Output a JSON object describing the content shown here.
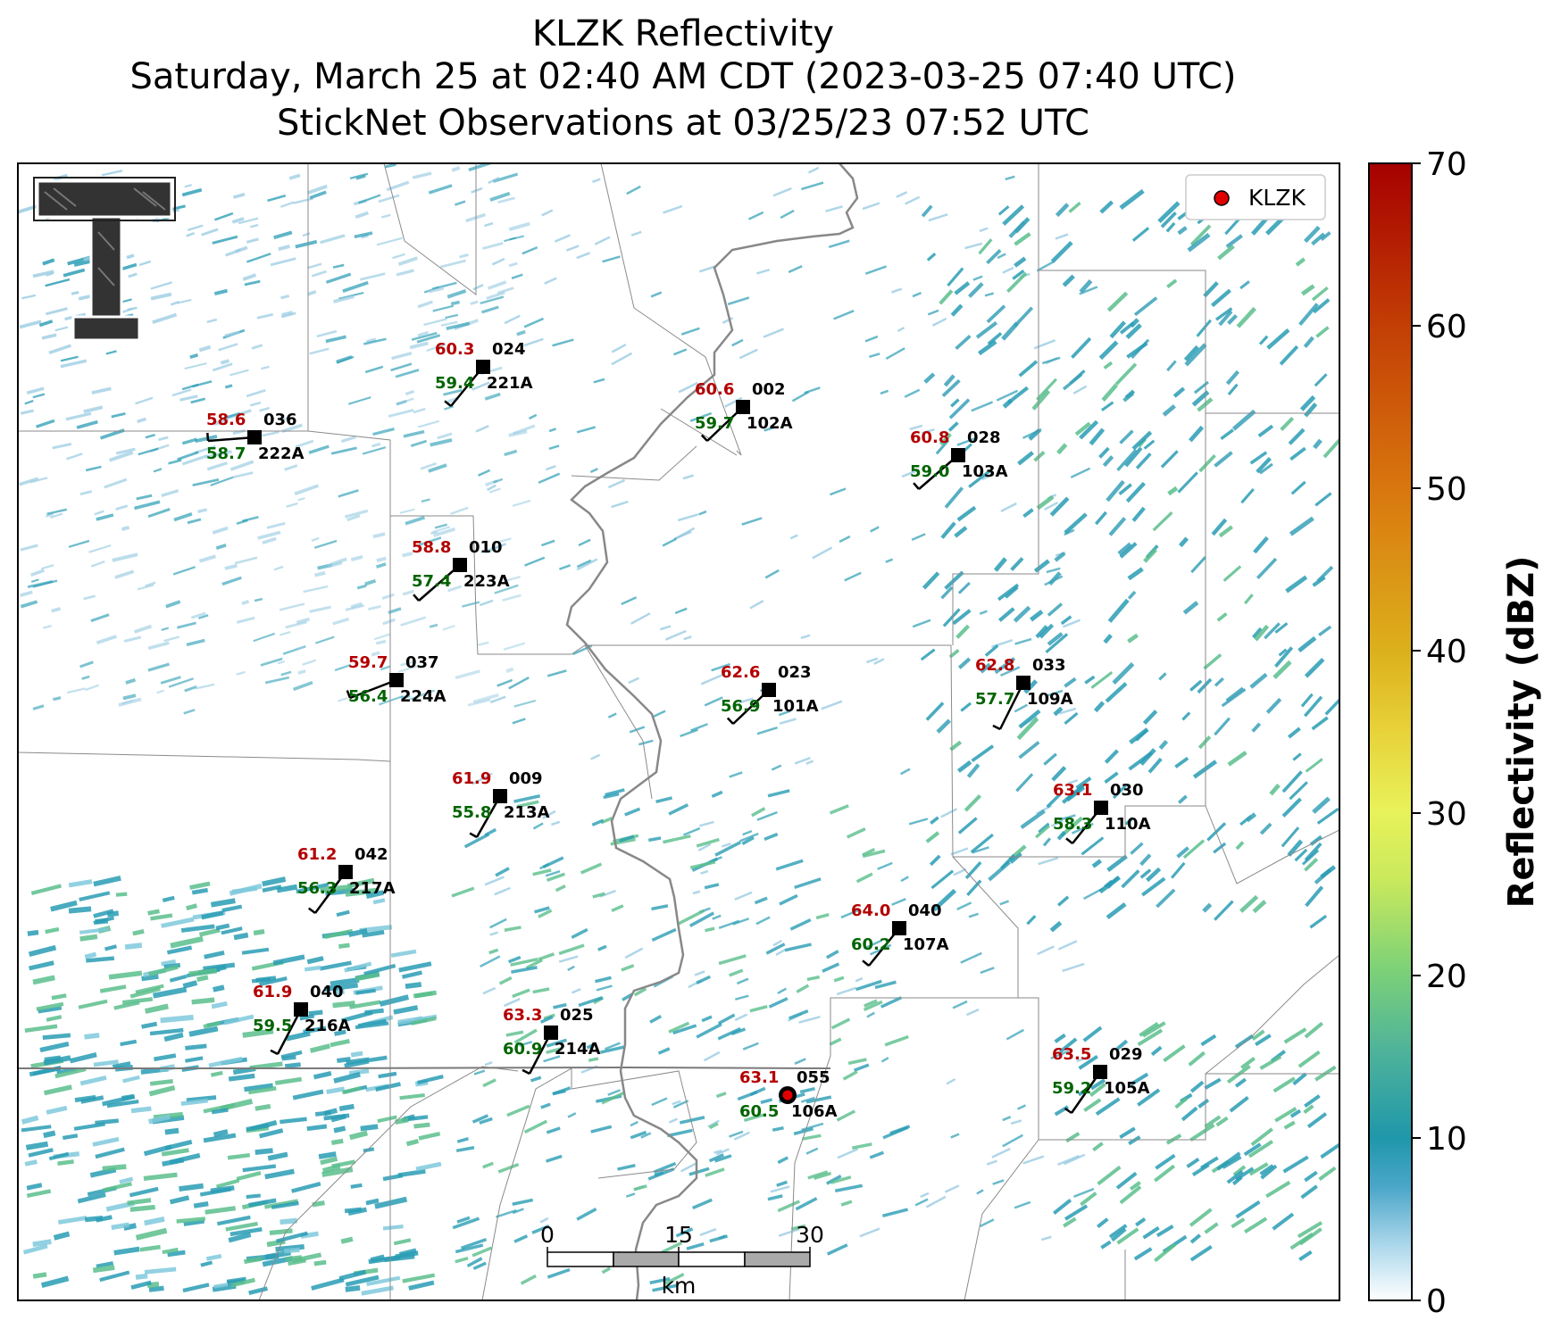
{
  "title": {
    "line1": "KLZK Reflectivity",
    "line2": "Saturday, March 25 at 02:40 AM CDT (2023-03-25 07:40 UTC)",
    "line3": "StickNet Observations at 03/25/23 07:52 UTC"
  },
  "legend": {
    "label": "KLZK",
    "marker_color": "#e00000"
  },
  "colorbar": {
    "label": "Reflectivity (dBZ)",
    "min": 0,
    "max": 70,
    "ticks": [
      "0",
      "10",
      "20",
      "30",
      "40",
      "50",
      "60",
      "70"
    ]
  },
  "scale_bar": {
    "ticks": [
      "0",
      "15",
      "30"
    ],
    "unit": "km"
  },
  "logo": {
    "letters": "TT"
  },
  "colors": {
    "temperature": "#b30000",
    "dewpoint": "#006400",
    "radar_low": "#2a9db5",
    "radar_mid": "#5bbf8c"
  },
  "stations": [
    {
      "temp": "60.3",
      "dew": "59.4",
      "dir": "024",
      "id": "221A"
    },
    {
      "temp": "58.6",
      "dew": "58.7",
      "dir": "036",
      "id": "222A"
    },
    {
      "temp": "60.6",
      "dew": "59.7",
      "dir": "002",
      "id": "102A"
    },
    {
      "temp": "60.8",
      "dew": "59.0",
      "dir": "028",
      "id": "103A"
    },
    {
      "temp": "58.8",
      "dew": "57.4",
      "dir": "010",
      "id": "223A"
    },
    {
      "temp": "59.7",
      "dew": "56.4",
      "dir": "037",
      "id": "224A"
    },
    {
      "temp": "62.6",
      "dew": "56.9",
      "dir": "023",
      "id": "101A"
    },
    {
      "temp": "62.8",
      "dew": "57.7",
      "dir": "033",
      "id": "109A"
    },
    {
      "temp": "61.9",
      "dew": "55.8",
      "dir": "009",
      "id": "213A"
    },
    {
      "temp": "63.1",
      "dew": "58.3",
      "dir": "030",
      "id": "110A"
    },
    {
      "temp": "61.2",
      "dew": "56.3",
      "dir": "042",
      "id": "217A"
    },
    {
      "temp": "64.0",
      "dew": "60.2",
      "dir": "040",
      "id": "107A"
    },
    {
      "temp": "61.9",
      "dew": "59.5",
      "dir": "040",
      "id": "216A"
    },
    {
      "temp": "63.3",
      "dew": "60.9",
      "dir": "025",
      "id": "214A"
    },
    {
      "temp": "63.1",
      "dew": "60.5",
      "dir": "055",
      "id": "106A"
    },
    {
      "temp": "63.5",
      "dew": "59.2",
      "dir": "029",
      "id": "105A"
    }
  ]
}
